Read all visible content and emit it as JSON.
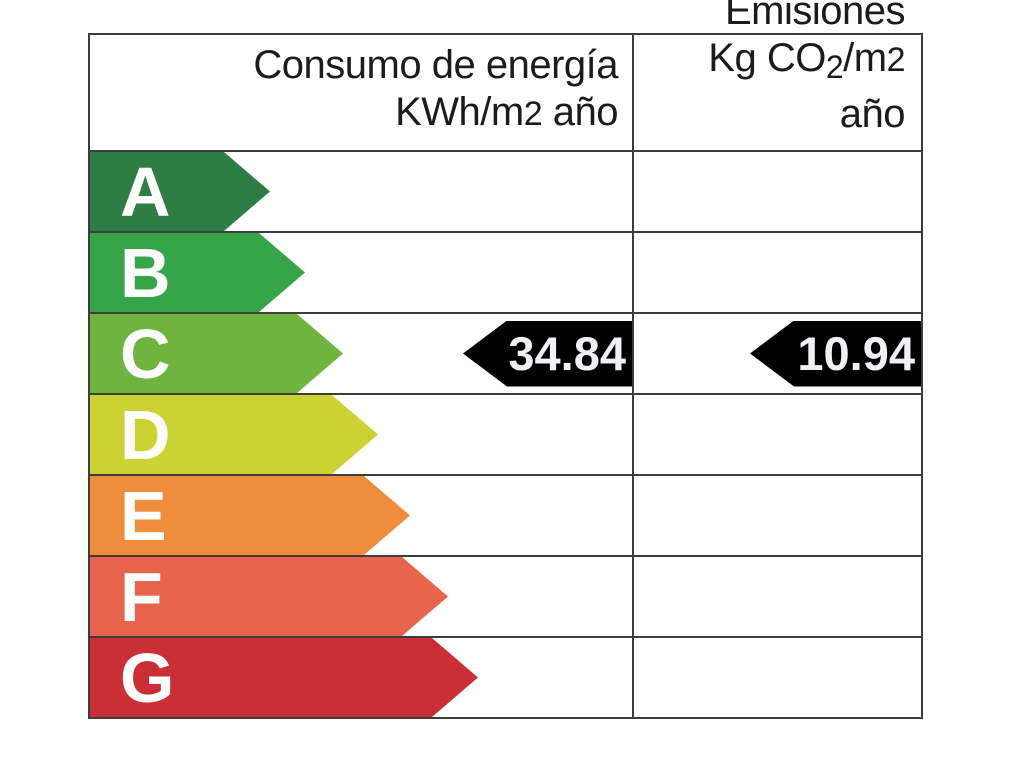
{
  "header": {
    "energy": {
      "title": "Consumo de energía",
      "unit_prefix": "KWh/m",
      "unit_exp": "2",
      "unit_suffix": " año"
    },
    "emissions": {
      "title": "Emisiones",
      "unit_prefix": "Kg CO",
      "unit_sub": "2",
      "unit_mid": "/m",
      "unit_exp": "2",
      "unit_suffix": " año"
    }
  },
  "ratings": [
    {
      "letter": "A",
      "color": "#2e7d44"
    },
    {
      "letter": "B",
      "color": "#36a449"
    },
    {
      "letter": "C",
      "color": "#6fb43e"
    },
    {
      "letter": "D",
      "color": "#ccd234"
    },
    {
      "letter": "E",
      "color": "#f08d3d"
    },
    {
      "letter": "F",
      "color": "#e8644c"
    },
    {
      "letter": "G",
      "color": "#ca2f35"
    }
  ],
  "values": {
    "energy": {
      "value": "34.84",
      "rating": "C"
    },
    "emissions": {
      "value": "10.94",
      "rating": "C"
    }
  },
  "colors": {
    "border": "#3d3d3d",
    "value_arrow_bg": "#000000",
    "value_arrow_text": "#f2f0f4",
    "letter_text": "#ffffff"
  }
}
